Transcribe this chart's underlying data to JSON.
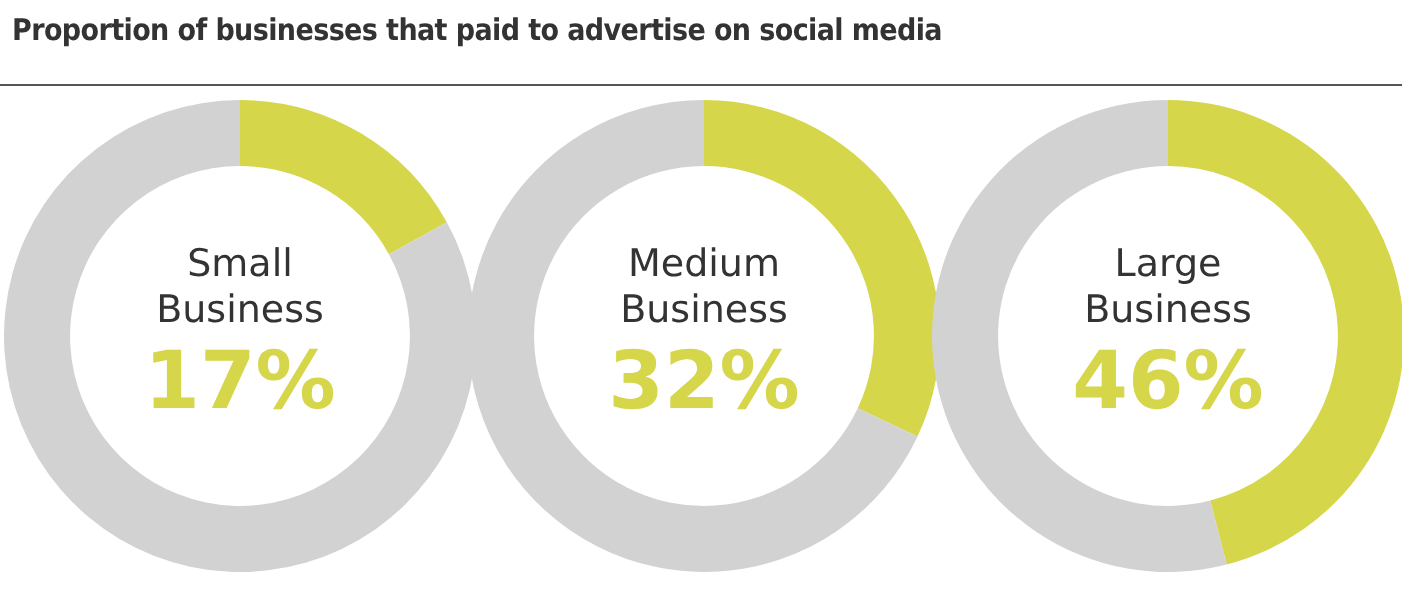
{
  "chart_data": [
    {
      "type": "donut",
      "title": "Proportion of businesses that paid to advertise on social media",
      "subtitle": "Small Business",
      "categories": [
        null,
        null
      ],
      "values": [
        17,
        83
      ],
      "colors": [
        "#d5d64a",
        "#d2d2d2"
      ],
      "annotations": [
        "17%"
      ]
    },
    {
      "type": "donut",
      "subtitle": "Medium Business",
      "categories": [
        null,
        null
      ],
      "values": [
        32,
        68
      ],
      "colors": [
        "#d5d64a",
        "#d2d2d2"
      ],
      "annotations": [
        "32%"
      ]
    },
    {
      "type": "donut",
      "subtitle": "Large Business",
      "categories": [
        null,
        null
      ],
      "values": [
        46,
        54
      ],
      "colors": [
        "#d5d64a",
        "#d2d2d2"
      ],
      "annotations": [
        "46%"
      ]
    }
  ]
}
